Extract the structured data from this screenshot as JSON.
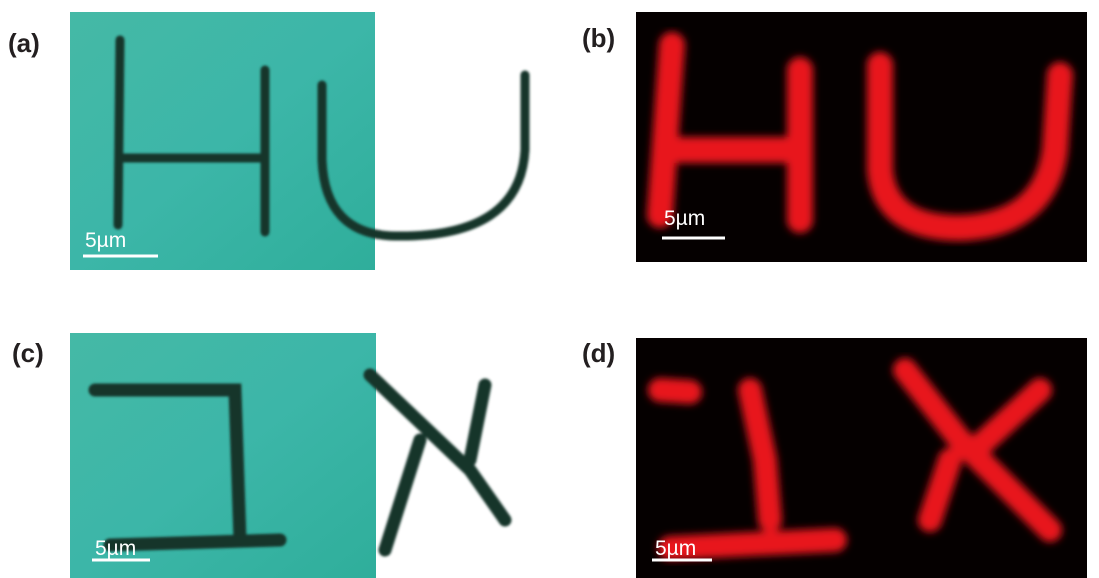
{
  "panels": [
    {
      "label": "(a)",
      "scale_bar": "5µm"
    },
    {
      "label": "(b)",
      "scale_bar": "5µm"
    },
    {
      "label": "(c)",
      "scale_bar": "5µm"
    },
    {
      "label": "(d)",
      "scale_bar": "5µm"
    }
  ]
}
